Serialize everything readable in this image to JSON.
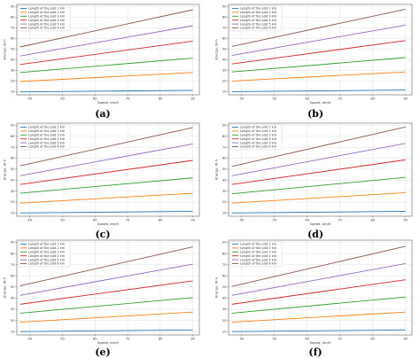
{
  "figure": {
    "panel_labels": [
      "(a)",
      "(b)",
      "(c)",
      "(d)",
      "(e)",
      "(f)"
    ]
  },
  "chart_data": [
    {
      "type": "line",
      "xlabel": "Speed, km/h",
      "ylabel": "Energy, W·h",
      "xlim": [
        36,
        92
      ],
      "ylim": [
        7,
        92
      ],
      "xticks": [
        40,
        50,
        60,
        70,
        80,
        90
      ],
      "yticks": [
        10,
        20,
        30,
        40,
        50,
        60,
        70,
        80,
        90
      ],
      "grid": true,
      "legend_position": "top-left",
      "x": [
        37,
        90
      ],
      "series": [
        {
          "name": "Length of the plot 1 km",
          "color": "#1f77b4",
          "values": [
            9.8,
            11.2
          ]
        },
        {
          "name": "Length of the plot 2 km",
          "color": "#ff7f0e",
          "values": [
            19.5,
            28.0
          ]
        },
        {
          "name": "Length of the plot 3 km",
          "color": "#2ca02c",
          "values": [
            28.0,
            41.5
          ]
        },
        {
          "name": "Length of the plot 4 km",
          "color": "#d62728",
          "values": [
            35.5,
            57.5
          ]
        },
        {
          "name": "Length of the plot 5 km",
          "color": "#9467bd",
          "values": [
            43.5,
            72.0
          ]
        },
        {
          "name": "Length of the plot 6 km",
          "color": "#8c564b",
          "values": [
            52.0,
            87.0
          ]
        }
      ]
    },
    {
      "type": "line",
      "xlabel": "Speed, km/h",
      "ylabel": "Energy, W·h",
      "xlim": [
        36,
        92
      ],
      "ylim": [
        7,
        92
      ],
      "xticks": [
        40,
        50,
        60,
        70,
        80,
        90
      ],
      "yticks": [
        10,
        20,
        30,
        40,
        50,
        60,
        70,
        80,
        90
      ],
      "grid": true,
      "legend_position": "top-left",
      "x": [
        37,
        90
      ],
      "series": [
        {
          "name": "Length of the plot 1 km",
          "color": "#1f77b4",
          "values": [
            10.0,
            11.5
          ]
        },
        {
          "name": "Length of the plot 2 km",
          "color": "#ff7f0e",
          "values": [
            20.0,
            28.5
          ]
        },
        {
          "name": "Length of the plot 3 km",
          "color": "#2ca02c",
          "values": [
            28.5,
            42.0
          ]
        },
        {
          "name": "Length of the plot 4 km",
          "color": "#d62728",
          "values": [
            36.0,
            58.0
          ]
        },
        {
          "name": "Length of the plot 5 km",
          "color": "#9467bd",
          "values": [
            44.0,
            72.5
          ]
        },
        {
          "name": "Length of the plot 6 km",
          "color": "#8c564b",
          "values": [
            52.5,
            87.5
          ]
        }
      ]
    },
    {
      "type": "line",
      "xlabel": "Speed, km/h",
      "ylabel": "Energy, W·h",
      "xlim": [
        36,
        92
      ],
      "ylim": [
        7,
        92
      ],
      "xticks": [
        40,
        50,
        60,
        70,
        80,
        90
      ],
      "yticks": [
        10,
        20,
        30,
        40,
        50,
        60,
        70,
        80,
        90
      ],
      "grid": true,
      "legend_position": "top-left",
      "x": [
        37,
        90
      ],
      "series": [
        {
          "name": "Length of the plot 1 km",
          "color": "#1f77b4",
          "values": [
            10.0,
            11.5
          ]
        },
        {
          "name": "Length of the plot 2 km",
          "color": "#ff7f0e",
          "values": [
            19.0,
            28.0
          ]
        },
        {
          "name": "Length of the plot 3 km",
          "color": "#2ca02c",
          "values": [
            28.0,
            42.0
          ]
        },
        {
          "name": "Length of the plot 4 km",
          "color": "#d62728",
          "values": [
            36.0,
            58.0
          ]
        },
        {
          "name": "Length of the plot 5 km",
          "color": "#9467bd",
          "values": [
            44.0,
            73.0
          ]
        },
        {
          "name": "Length of the plot 6 km",
          "color": "#8c564b",
          "values": [
            53.0,
            88.0
          ]
        }
      ]
    },
    {
      "type": "line",
      "xlabel": "Speed, km/h",
      "ylabel": "Energy, W·h",
      "xlim": [
        36,
        92
      ],
      "ylim": [
        7,
        92
      ],
      "xticks": [
        40,
        50,
        60,
        70,
        80,
        90
      ],
      "yticks": [
        10,
        20,
        30,
        40,
        50,
        60,
        70,
        80,
        90
      ],
      "grid": true,
      "legend_position": "top-left",
      "x": [
        37,
        90
      ],
      "series": [
        {
          "name": "Length of the plot 1 km",
          "color": "#1f77b4",
          "values": [
            10.0,
            11.5
          ]
        },
        {
          "name": "Length of the plot 2 km",
          "color": "#ff7f0e",
          "values": [
            19.0,
            28.5
          ]
        },
        {
          "name": "Length of the plot 3 km",
          "color": "#2ca02c",
          "values": [
            27.5,
            42.5
          ]
        },
        {
          "name": "Length of the plot 4 km",
          "color": "#d62728",
          "values": [
            36.0,
            58.5
          ]
        },
        {
          "name": "Length of the plot 5 km",
          "color": "#9467bd",
          "values": [
            44.0,
            73.5
          ]
        },
        {
          "name": "Length of the plot 6 km",
          "color": "#8c564b",
          "values": [
            52.5,
            88.5
          ]
        }
      ]
    },
    {
      "type": "line",
      "xlabel": "Speed, km/h",
      "ylabel": "Energy, W·h",
      "xlim": [
        36,
        92
      ],
      "ylim": [
        7,
        92
      ],
      "xticks": [
        40,
        50,
        60,
        70,
        80,
        90
      ],
      "yticks": [
        10,
        20,
        30,
        40,
        50,
        60,
        70,
        80,
        90
      ],
      "grid": true,
      "legend_position": "top-left",
      "x": [
        37,
        90
      ],
      "series": [
        {
          "name": "Length of the plot 1 km",
          "color": "#1f77b4",
          "values": [
            10.0,
            11.5
          ]
        },
        {
          "name": "Length of the plot 2 km",
          "color": "#ff7f0e",
          "values": [
            18.5,
            27.5
          ]
        },
        {
          "name": "Length of the plot 3 km",
          "color": "#2ca02c",
          "values": [
            26.5,
            40.5
          ]
        },
        {
          "name": "Length of the plot 4 km",
          "color": "#d62728",
          "values": [
            34.5,
            55.5
          ]
        },
        {
          "name": "Length of the plot 5 km",
          "color": "#9467bd",
          "values": [
            42.5,
            70.5
          ]
        },
        {
          "name": "Length of the plot 6 km",
          "color": "#8c564b",
          "values": [
            51.0,
            86.0
          ]
        }
      ]
    },
    {
      "type": "line",
      "xlabel": "Speed, km/h",
      "ylabel": "Energy, W·h",
      "xlim": [
        36,
        92
      ],
      "ylim": [
        7,
        92
      ],
      "xticks": [
        40,
        50,
        60,
        70,
        80,
        90
      ],
      "yticks": [
        10,
        20,
        30,
        40,
        50,
        60,
        70,
        80,
        90
      ],
      "grid": true,
      "legend_position": "top-left",
      "x": [
        37,
        90
      ],
      "series": [
        {
          "name": "Length of the plot 1 km",
          "color": "#1f77b4",
          "values": [
            10.0,
            11.5
          ]
        },
        {
          "name": "Length of the plot 2 km",
          "color": "#ff7f0e",
          "values": [
            18.5,
            27.5
          ]
        },
        {
          "name": "Length of the plot 3 km",
          "color": "#2ca02c",
          "values": [
            26.5,
            41.0
          ]
        },
        {
          "name": "Length of the plot 4 km",
          "color": "#d62728",
          "values": [
            34.5,
            56.5
          ]
        },
        {
          "name": "Length of the plot 5 km",
          "color": "#9467bd",
          "values": [
            42.5,
            71.0
          ]
        },
        {
          "name": "Length of the plot 6 km",
          "color": "#8c564b",
          "values": [
            50.5,
            86.5
          ]
        }
      ]
    }
  ]
}
